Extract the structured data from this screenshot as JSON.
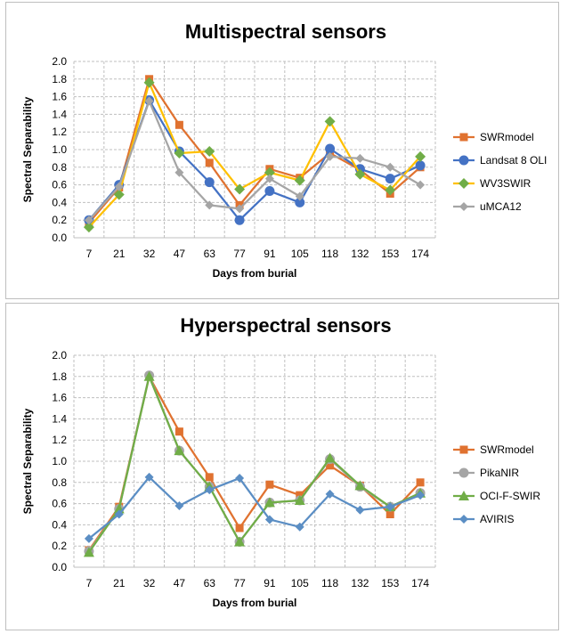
{
  "chart_data": [
    {
      "type": "line",
      "title": "Multispectral sensors",
      "xlabel": "Days from burial",
      "ylabel": "Spectral Separability",
      "ylim": [
        0,
        2.0
      ],
      "yticks": [
        "0.0",
        "0.2",
        "0.4",
        "0.6",
        "0.8",
        "1.0",
        "1.2",
        "1.4",
        "1.6",
        "1.8",
        "2.0"
      ],
      "categories": [
        "7",
        "21",
        "32",
        "47",
        "63",
        "77",
        "91",
        "105",
        "118",
        "132",
        "153",
        "174"
      ],
      "legend_position": "right",
      "grid": "dashed",
      "series": [
        {
          "name": "SWRmodel",
          "color": "#e07230",
          "marker": "square",
          "values": [
            0.17,
            0.57,
            1.8,
            1.28,
            0.85,
            0.37,
            0.78,
            0.68,
            0.96,
            0.77,
            0.5,
            0.8
          ]
        },
        {
          "name": "Landsat 8 OLI",
          "color": "#4472c4",
          "marker": "circle",
          "values": [
            0.2,
            0.6,
            1.56,
            0.98,
            0.63,
            0.2,
            0.53,
            0.4,
            1.01,
            0.78,
            0.67,
            0.82
          ]
        },
        {
          "name": "WV3SWIR",
          "color": "#ffc000",
          "marker": "diamond-green",
          "values": [
            0.12,
            0.49,
            1.76,
            0.96,
            0.98,
            0.55,
            0.74,
            0.65,
            1.32,
            0.72,
            0.54,
            0.92
          ]
        },
        {
          "name": "uMCA12",
          "color": "#a5a5a5",
          "marker": "diamond",
          "values": [
            0.2,
            0.58,
            1.55,
            0.74,
            0.37,
            0.33,
            0.67,
            0.47,
            0.92,
            0.9,
            0.8,
            0.6
          ]
        }
      ]
    },
    {
      "type": "line",
      "title": "Hyperspectral sensors",
      "xlabel": "Days from burial",
      "ylabel": "Spectral Separability",
      "ylim": [
        0,
        2.0
      ],
      "yticks": [
        "0.0",
        "0.2",
        "0.4",
        "0.6",
        "0.8",
        "1.0",
        "1.2",
        "1.4",
        "1.6",
        "1.8",
        "2.0"
      ],
      "categories": [
        "7",
        "21",
        "32",
        "47",
        "63",
        "77",
        "91",
        "105",
        "118",
        "132",
        "153",
        "174"
      ],
      "legend_position": "right",
      "grid": "dashed",
      "series": [
        {
          "name": "SWRmodel",
          "color": "#e07230",
          "marker": "square",
          "values": [
            0.16,
            0.57,
            1.8,
            1.28,
            0.85,
            0.37,
            0.78,
            0.68,
            0.96,
            0.77,
            0.5,
            0.8
          ]
        },
        {
          "name": "PikaNIR",
          "color": "#a5a5a5",
          "marker": "circle",
          "values": [
            0.15,
            0.55,
            1.81,
            1.1,
            0.76,
            0.24,
            0.61,
            0.63,
            1.02,
            0.76,
            0.57,
            0.7
          ]
        },
        {
          "name": "OCI-F-SWIR",
          "color": "#70ad47",
          "marker": "triangle",
          "values": [
            0.14,
            0.55,
            1.8,
            1.1,
            0.76,
            0.24,
            0.61,
            0.63,
            1.03,
            0.77,
            0.57,
            0.7
          ]
        },
        {
          "name": "AVIRIS",
          "color": "#5b8ec4",
          "marker": "diamond",
          "values": [
            0.27,
            0.5,
            0.85,
            0.58,
            0.73,
            0.84,
            0.45,
            0.38,
            0.69,
            0.54,
            0.57,
            0.68
          ]
        }
      ]
    }
  ]
}
